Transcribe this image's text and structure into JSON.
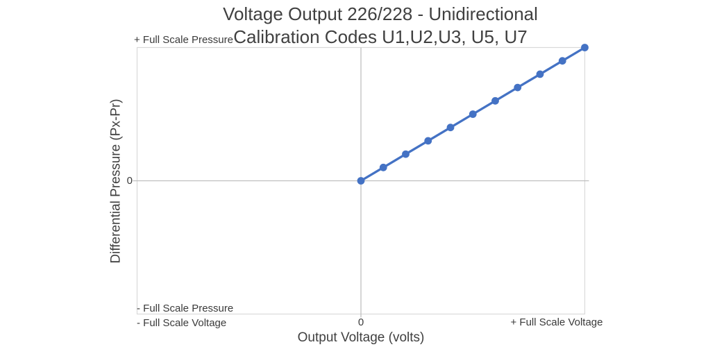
{
  "chart_data": {
    "type": "line",
    "title": "Voltage Output 226/228 - Unidirectional Calibration Codes U1,U2,U3, U5, U7",
    "title_lines": [
      "Voltage Output 226/228 - Unidirectional",
      "Calibration Codes U1,U2,U3, U5, U7"
    ],
    "xlabel": "Output Voltage (volts)",
    "ylabel": "Differential Pressure (Px-Pr)",
    "x_units": "fraction of full scale voltage",
    "y_units": "fraction of full scale pressure",
    "xlim": [
      -1,
      1
    ],
    "ylim": [
      -1,
      1
    ],
    "x_ticks": [
      {
        "value": -1,
        "label": "- Full Scale Voltage"
      },
      {
        "value": 0,
        "label": "0"
      },
      {
        "value": 1,
        "label": "+ Full Scale Voltage"
      }
    ],
    "y_ticks": [
      {
        "value": -1,
        "label": "- Full Scale Pressure"
      },
      {
        "value": 0,
        "label": "0"
      },
      {
        "value": 1,
        "label": "+ Full Scale Pressure"
      }
    ],
    "grid": "center axes and plot border only",
    "legend": "none",
    "axis_color": "#BFBFBF",
    "plot_border_color": "#D9D9D9",
    "series": [
      {
        "color": "#4472C4",
        "marker": "circle",
        "x": [
          0,
          0.1,
          0.2,
          0.3,
          0.4,
          0.5,
          0.6,
          0.7,
          0.8,
          0.9,
          1.0
        ],
        "y": [
          0,
          0.1,
          0.2,
          0.3,
          0.4,
          0.5,
          0.6,
          0.7,
          0.8,
          0.9,
          1.0
        ]
      }
    ]
  }
}
